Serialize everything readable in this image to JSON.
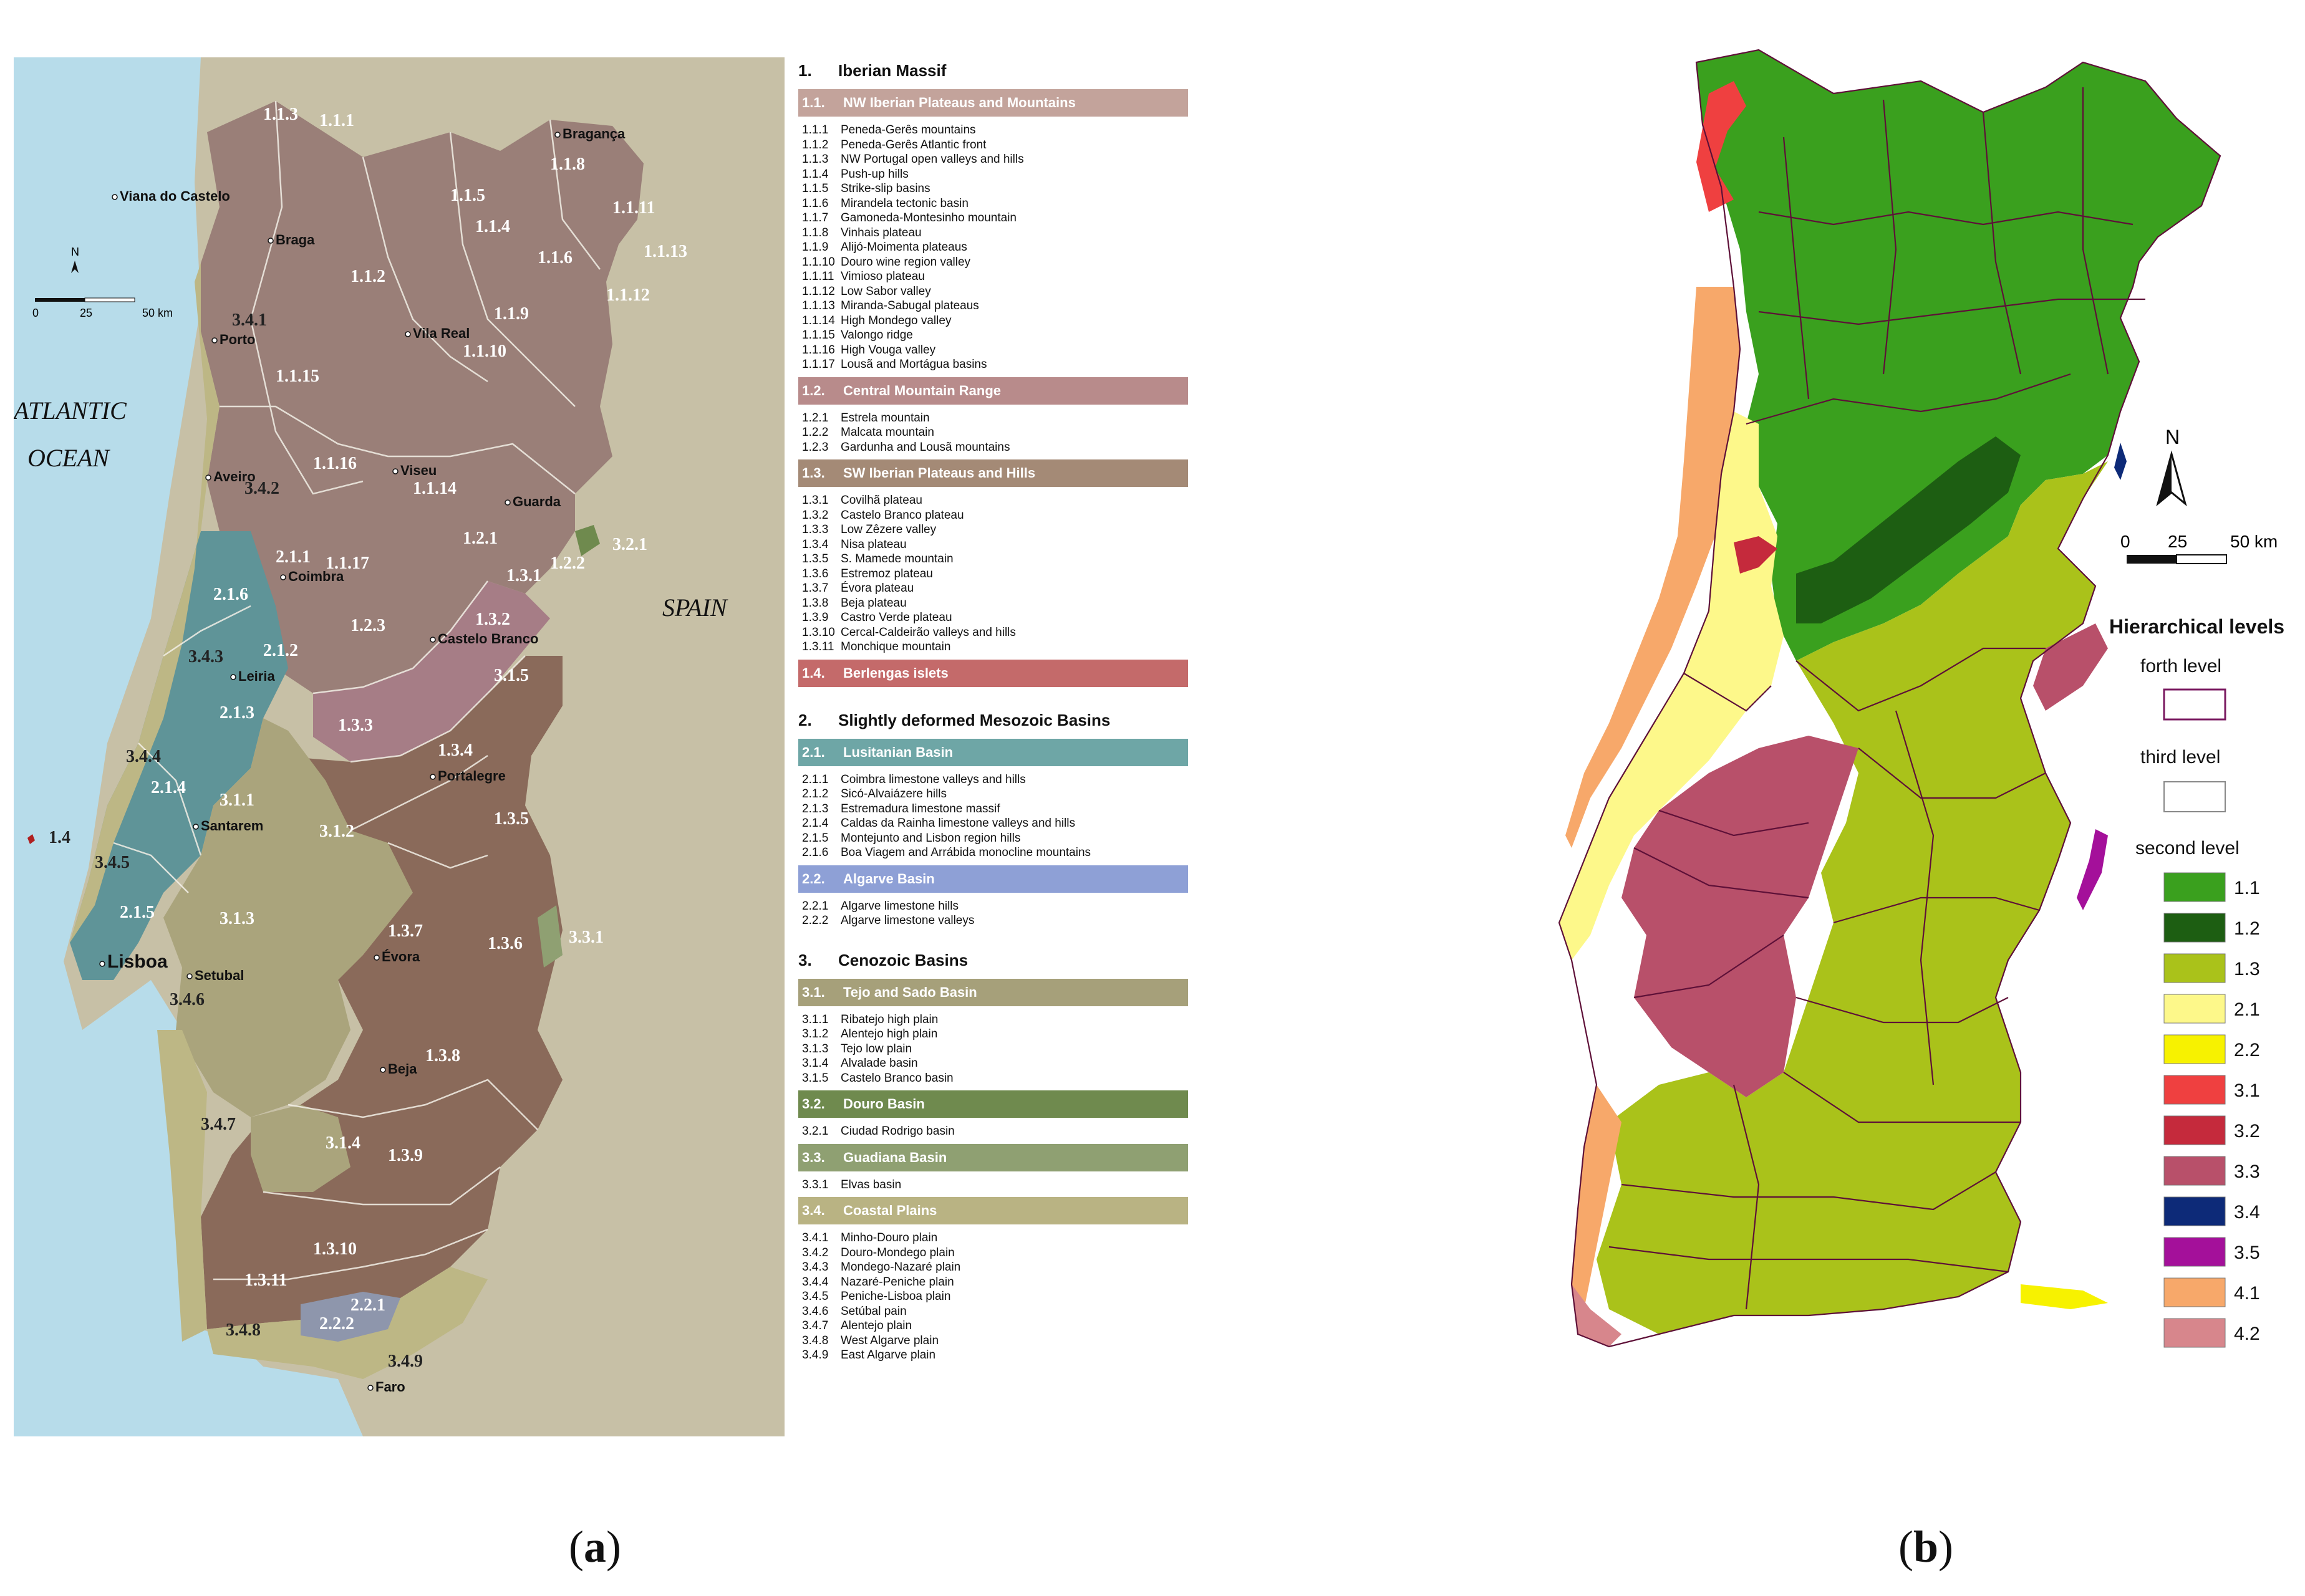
{
  "panel_a": {
    "caption_open": "(",
    "caption_letter": "a",
    "caption_close": ")",
    "ocean_line1": "ATLANTIC",
    "ocean_line2": "OCEAN",
    "spain": "SPAIN",
    "north": "N",
    "scale_labels": [
      "0",
      "25",
      "50 km"
    ],
    "cities": [
      "Viana do Castelo",
      "Braga",
      "Bragança",
      "Vila Real",
      "Porto",
      "Aveiro",
      "Viseu",
      "Guarda",
      "Coimbra",
      "Castelo Branco",
      "Leiria",
      "Portalegre",
      "Santarem",
      "Lisboa",
      "Setubal",
      "Évora",
      "Beja",
      "Faro"
    ],
    "region_labels": [
      "1.1.3",
      "1.1.1",
      "1.1.8",
      "1.1.5",
      "1.1.4",
      "1.1.11",
      "1.1.13",
      "1.1.6",
      "1.1.12",
      "1.1.9",
      "1.1.10",
      "1.1.2",
      "1.1.15",
      "1.1.16",
      "1.1.14",
      "1.1.17",
      "1.2.1",
      "1.2.2",
      "1.2.3",
      "1.3.1",
      "1.3.2",
      "1.3.3",
      "1.3.4",
      "1.3.5",
      "1.3.6",
      "1.3.7",
      "1.3.8",
      "1.3.9",
      "1.3.10",
      "1.3.11",
      "1.4",
      "2.1.1",
      "2.1.2",
      "2.1.3",
      "2.1.4",
      "2.1.5",
      "2.1.6",
      "2.2.1",
      "2.2.2",
      "3.1.1",
      "3.1.2",
      "3.1.3",
      "3.1.4",
      "3.1.5",
      "3.2.1",
      "3.3.1",
      "3.4.1",
      "3.4.2",
      "3.4.3",
      "3.4.4",
      "3.4.5",
      "3.4.6",
      "3.4.7",
      "3.4.8",
      "3.4.9"
    ],
    "legend": {
      "groups": [
        {
          "num": "1.",
          "title": "Iberian Massif",
          "sections": [
            {
              "num": "1.1.",
              "title": "NW Iberian Plateaus and Mountains",
              "color": "#c3a39b",
              "items": [
                [
                  "1.1.1",
                  "Peneda-Gerês mountains"
                ],
                [
                  "1.1.2",
                  "Peneda-Gerês Atlantic front"
                ],
                [
                  "1.1.3",
                  "NW Portugal open valleys and hills"
                ],
                [
                  "1.1.4",
                  "Push-up hills"
                ],
                [
                  "1.1.5",
                  "Strike-slip basins"
                ],
                [
                  "1.1.6",
                  "Mirandela tectonic basin"
                ],
                [
                  "1.1.7",
                  "Gamoneda-Montesinho mountain"
                ],
                [
                  "1.1.8",
                  "Vinhais plateau"
                ],
                [
                  "1.1.9",
                  "Alijó-Moimenta plateaus"
                ],
                [
                  "1.1.10",
                  "Douro wine region valley"
                ],
                [
                  "1.1.11",
                  "Vimioso plateau"
                ],
                [
                  "1.1.12",
                  "Low Sabor valley"
                ],
                [
                  "1.1.13",
                  "Miranda-Sabugal plateaus"
                ],
                [
                  "1.1.14",
                  "High Mondego valley"
                ],
                [
                  "1.1.15",
                  "Valongo ridge"
                ],
                [
                  "1.1.16",
                  "High Vouga valley"
                ],
                [
                  "1.1.17",
                  "Lousã and Mortágua basins"
                ]
              ]
            },
            {
              "num": "1.2.",
              "title": "Central Mountain Range",
              "color": "#b88b8b",
              "items": [
                [
                  "1.2.1",
                  "Estrela mountain"
                ],
                [
                  "1.2.2",
                  "Malcata mountain"
                ],
                [
                  "1.2.3",
                  "Gardunha and Lousã mountains"
                ]
              ]
            },
            {
              "num": "1.3.",
              "title": "SW Iberian Plateaus and Hills",
              "color": "#a48a76",
              "items": [
                [
                  "1.3.1",
                  "Covilhã plateau"
                ],
                [
                  "1.3.2",
                  "Castelo Branco plateau"
                ],
                [
                  "1.3.3",
                  "Low Zêzere valley"
                ],
                [
                  "1.3.4",
                  "Nisa plateau"
                ],
                [
                  "1.3.5",
                  "S. Mamede mountain"
                ],
                [
                  "1.3.6",
                  "Estremoz plateau"
                ],
                [
                  "1.3.7",
                  "Évora plateau"
                ],
                [
                  "1.3.8",
                  "Beja plateau"
                ],
                [
                  "1.3.9",
                  "Castro Verde plateau"
                ],
                [
                  "1.3.10",
                  "Cercal-Caldeirão valleys and hills"
                ],
                [
                  "1.3.11",
                  "Monchique mountain"
                ]
              ]
            },
            {
              "num": "1.4.",
              "title": "Berlengas islets",
              "color": "#c46a6a",
              "items": []
            }
          ]
        },
        {
          "num": "2.",
          "title": "Slightly deformed Mesozoic Basins",
          "sections": [
            {
              "num": "2.1.",
              "title": "Lusitanian Basin",
              "color": "#6ea6a6",
              "items": [
                [
                  "2.1.1",
                  "Coimbra limestone valleys and hills"
                ],
                [
                  "2.1.2",
                  "Sicó-Alvaiázere hills"
                ],
                [
                  "2.1.3",
                  "Estremadura limestone massif"
                ],
                [
                  "2.1.4",
                  "Caldas da Rainha limestone valleys and hills"
                ],
                [
                  "2.1.5",
                  "Montejunto and Lisbon region hills"
                ],
                [
                  "2.1.6",
                  "Boa Viagem and Arrábida monocline mountains"
                ]
              ]
            },
            {
              "num": "2.2.",
              "title": "Algarve Basin",
              "color": "#8ea0d6",
              "items": [
                [
                  "2.2.1",
                  "Algarve limestone hills"
                ],
                [
                  "2.2.2",
                  "Algarve limestone valleys"
                ]
              ]
            }
          ]
        },
        {
          "num": "3.",
          "title": "Cenozoic Basins",
          "sections": [
            {
              "num": "3.1.",
              "title": "Tejo and Sado Basin",
              "color": "#a6a07a",
              "items": [
                [
                  "3.1.1",
                  "Ribatejo high plain"
                ],
                [
                  "3.1.2",
                  "Alentejo high plain"
                ],
                [
                  "3.1.3",
                  "Tejo low plain"
                ],
                [
                  "3.1.4",
                  "Alvalade basin"
                ],
                [
                  "3.1.5",
                  "Castelo Branco basin"
                ]
              ]
            },
            {
              "num": "3.2.",
              "title": "Douro Basin",
              "color": "#6f8a4e",
              "items": [
                [
                  "3.2.1",
                  "Ciudad Rodrigo basin"
                ]
              ]
            },
            {
              "num": "3.3.",
              "title": "Guadiana Basin",
              "color": "#8fa072",
              "items": [
                [
                  "3.3.1",
                  "Elvas basin"
                ]
              ]
            },
            {
              "num": "3.4.",
              "title": "Coastal Plains",
              "color": "#b9b383",
              "items": [
                [
                  "3.4.1",
                  "Minho-Douro plain"
                ],
                [
                  "3.4.2",
                  "Douro-Mondego plain"
                ],
                [
                  "3.4.3",
                  "Mondego-Nazaré plain"
                ],
                [
                  "3.4.4",
                  "Nazaré-Peniche plain"
                ],
                [
                  "3.4.5",
                  "Peniche-Lisboa plain"
                ],
                [
                  "3.4.6",
                  "Setúbal pain"
                ],
                [
                  "3.4.7",
                  "Alentejo plain"
                ],
                [
                  "3.4.8",
                  "West Algarve plain"
                ],
                [
                  "3.4.9",
                  "East Algarve plain"
                ]
              ]
            }
          ]
        }
      ]
    }
  },
  "panel_b": {
    "caption_open": "(",
    "caption_letter": "b",
    "caption_close": ")",
    "north": "N",
    "scale_labels": [
      "0",
      "25",
      "50 km"
    ],
    "legend_title": "Hierarchical levels",
    "levels": [
      "forth  level",
      "third  level",
      "second level"
    ],
    "classes": [
      {
        "code": "1.1",
        "color": "#3aa01e"
      },
      {
        "code": "1.2",
        "color": "#1d5e12"
      },
      {
        "code": "1.3",
        "color": "#aac21a"
      },
      {
        "code": "2.1",
        "color": "#fdf88a"
      },
      {
        "code": "2.2",
        "color": "#f7f200"
      },
      {
        "code": "3.1",
        "color": "#ef4040"
      },
      {
        "code": "3.2",
        "color": "#c52a3c"
      },
      {
        "code": "3.3",
        "color": "#b8506a"
      },
      {
        "code": "3.4",
        "color": "#0d2a78"
      },
      {
        "code": "3.5",
        "color": "#a4109a"
      },
      {
        "code": "4.1",
        "color": "#f7a86a"
      },
      {
        "code": "4.2",
        "color": "#d7868c"
      }
    ]
  }
}
